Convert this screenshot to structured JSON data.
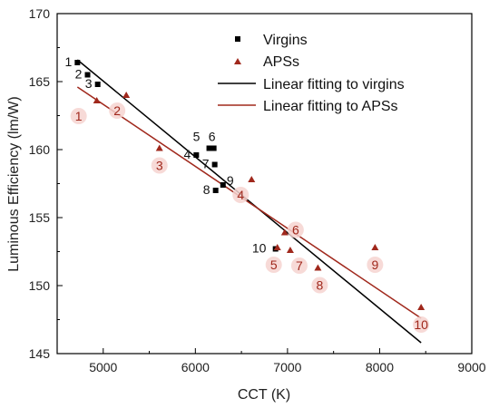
{
  "chart_data": {
    "type": "scatter",
    "title": "",
    "xlabel": "CCT (K)",
    "ylabel": "Luminous Efficiency (lm/W)",
    "xlim": [
      4500,
      9000
    ],
    "ylim": [
      145,
      170
    ],
    "xticks": [
      5000,
      6000,
      7000,
      8000,
      9000
    ],
    "yticks": [
      145,
      150,
      155,
      160,
      165,
      170
    ],
    "grid": false,
    "legend_position": "top-right",
    "colors": {
      "virgins": "#000000",
      "apss": "#a0281c",
      "label_halo": "#f6d3d0"
    },
    "series": [
      {
        "name": "Virgins",
        "marker": "square",
        "points": [
          {
            "label": "1",
            "x": 4720,
            "y": 166.4
          },
          {
            "label": "2",
            "x": 4830,
            "y": 165.5
          },
          {
            "label": "3",
            "x": 4940,
            "y": 164.8
          },
          {
            "label": "4",
            "x": 6010,
            "y": 159.6
          },
          {
            "label": "5",
            "x": 6150,
            "y": 160.1
          },
          {
            "label": "6",
            "x": 6200,
            "y": 160.1
          },
          {
            "label": "7",
            "x": 6210,
            "y": 158.9
          },
          {
            "label": "8",
            "x": 6220,
            "y": 157.0
          },
          {
            "label": "9",
            "x": 6300,
            "y": 157.4
          },
          {
            "label": "10",
            "x": 6870,
            "y": 152.7
          }
        ]
      },
      {
        "name": "APSs",
        "marker": "triangle",
        "points": [
          {
            "label": "1",
            "x": 4930,
            "y": 163.6
          },
          {
            "label": "2",
            "x": 5250,
            "y": 164.0
          },
          {
            "label": "3",
            "x": 5610,
            "y": 160.1
          },
          {
            "label": "4",
            "x": 6610,
            "y": 157.8
          },
          {
            "label": "5",
            "x": 6890,
            "y": 152.8
          },
          {
            "label": "6",
            "x": 6970,
            "y": 153.9
          },
          {
            "label": "7",
            "x": 7030,
            "y": 152.6
          },
          {
            "label": "8",
            "x": 7330,
            "y": 151.3
          },
          {
            "label": "9",
            "x": 7950,
            "y": 152.8
          },
          {
            "label": "10",
            "x": 8450,
            "y": 148.4
          }
        ]
      },
      {
        "name": "Linear fitting to virgins",
        "type": "line",
        "values": [
          [
            4720,
            166.6
          ],
          [
            8450,
            145.8
          ]
        ]
      },
      {
        "name": "Linear fitting to APSs",
        "type": "line",
        "values": [
          [
            4720,
            164.6
          ],
          [
            8450,
            147.6
          ]
        ]
      }
    ]
  }
}
